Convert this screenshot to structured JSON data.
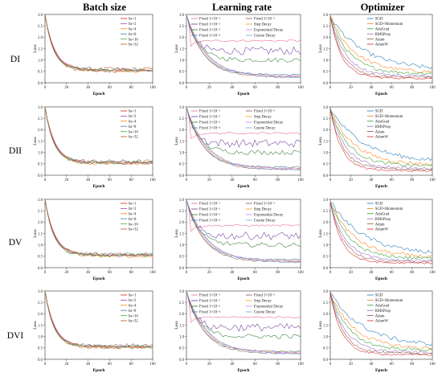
{
  "headers": {
    "batch": "Batch size",
    "lr": "Learning rate",
    "opt": "Optimizer"
  },
  "rows": [
    "DI",
    "DII",
    "DV",
    "DVI"
  ],
  "colors": {
    "bs": [
      "#e41a1c",
      "#984ea3",
      "#ff7f00",
      "#377eb8",
      "#4daf4a",
      "#b15928"
    ],
    "lr": [
      "#f06292",
      "#6a3d9a",
      "#2e7d32",
      "#377eb8",
      "#8c564b",
      "#ff9f1c",
      "#c77dff",
      "#6fa8dc"
    ],
    "opt": [
      "#1f77b4",
      "#ff7f0e",
      "#2ca02c",
      "#9467bd",
      "#8c564b",
      "#d62728"
    ]
  },
  "chart_data": {
    "type": "line",
    "xlabel": "Epoch",
    "ylabel": "Loss",
    "xlim": [
      0,
      100
    ],
    "ylim": [
      0.0,
      3.0
    ],
    "xticks": [
      "0",
      "20",
      "40",
      "60",
      "80",
      "100"
    ],
    "yticks": [
      "0.0",
      "0.5",
      "1.0",
      "1.5",
      "2.0",
      "2.5",
      "3.0"
    ],
    "legends": {
      "batch": [
        "bs=1",
        "bs=2",
        "bs=4",
        "bs=8",
        "bs=16",
        "bs=32"
      ],
      "lr": [
        "Fixed 1×10⁻¹",
        "Fixed 1×10⁻²",
        "Fixed 1×10⁻³",
        "Fixed 1×10⁻⁴",
        "Fixed 1×10⁻⁵",
        "Step Decay",
        "Exponential Decay",
        "Cosine Decay"
      ],
      "opt": [
        "SGD",
        "SGD+Momentum",
        "AdaGrad",
        "RMSProp",
        "Adam",
        "AdamW"
      ]
    },
    "approx_final_loss": {
      "batch": [
        0.55,
        0.52,
        0.5,
        0.58,
        0.55,
        0.6
      ],
      "lr": [
        1.85,
        1.4,
        1.0,
        0.35,
        0.25,
        0.3,
        0.28,
        0.22
      ],
      "opt": [
        0.55,
        0.45,
        0.4,
        0.3,
        0.25,
        0.2
      ]
    }
  }
}
